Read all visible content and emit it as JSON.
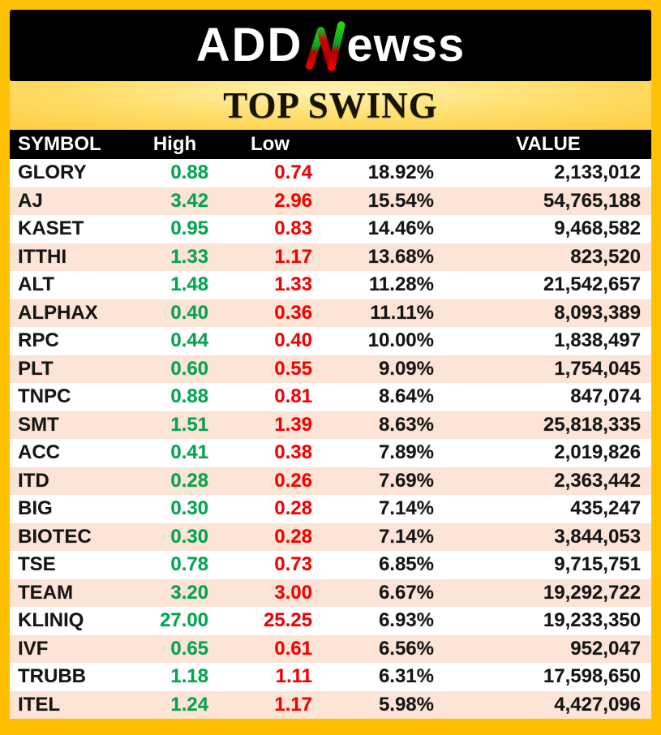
{
  "brand": {
    "logo_prefix": "ADD",
    "logo_n_icon": "green-red-zigzag-n",
    "logo_suffix": "ewss"
  },
  "title": "TOP SWING",
  "chart_data": {
    "type": "table",
    "title": "TOP SWING",
    "columns": [
      "SYMBOL",
      "High",
      "Low",
      "",
      "VALUE"
    ],
    "rows": [
      [
        "GLORY",
        "0.88",
        "0.74",
        "18.92%",
        "2,133,012"
      ],
      [
        "AJ",
        "3.42",
        "2.96",
        "15.54%",
        "54,765,188"
      ],
      [
        "KASET",
        "0.95",
        "0.83",
        "14.46%",
        "9,468,582"
      ],
      [
        "ITTHI",
        "1.33",
        "1.17",
        "13.68%",
        "823,520"
      ],
      [
        "ALT",
        "1.48",
        "1.33",
        "11.28%",
        "21,542,657"
      ],
      [
        "ALPHAX",
        "0.40",
        "0.36",
        "11.11%",
        "8,093,389"
      ],
      [
        "RPC",
        "0.44",
        "0.40",
        "10.00%",
        "1,838,497"
      ],
      [
        "PLT",
        "0.60",
        "0.55",
        "9.09%",
        "1,754,045"
      ],
      [
        "TNPC",
        "0.88",
        "0.81",
        "8.64%",
        "847,074"
      ],
      [
        "SMT",
        "1.51",
        "1.39",
        "8.63%",
        "25,818,335"
      ],
      [
        "ACC",
        "0.41",
        "0.38",
        "7.89%",
        "2,019,826"
      ],
      [
        "ITD",
        "0.28",
        "0.26",
        "7.69%",
        "2,363,442"
      ],
      [
        "BIG",
        "0.30",
        "0.28",
        "7.14%",
        "435,247"
      ],
      [
        "BIOTEC",
        "0.30",
        "0.28",
        "7.14%",
        "3,844,053"
      ],
      [
        "TSE",
        "0.78",
        "0.73",
        "6.85%",
        "9,715,751"
      ],
      [
        "TEAM",
        "3.20",
        "3.00",
        "6.67%",
        "19,292,722"
      ],
      [
        "KLINIQ",
        "27.00",
        "25.25",
        "6.93%",
        "19,233,350"
      ],
      [
        "IVF",
        "0.65",
        "0.61",
        "6.56%",
        "952,047"
      ],
      [
        "TRUBB",
        "1.18",
        "1.11",
        "6.31%",
        "17,598,650"
      ],
      [
        "ITEL",
        "1.24",
        "1.17",
        "5.98%",
        "4,427,096"
      ]
    ]
  },
  "colors": {
    "gold": "#ffc107",
    "gold_deep": "#ffbf00",
    "peach": "#fce4d6",
    "green": "#00a650",
    "red": "#f40000"
  }
}
